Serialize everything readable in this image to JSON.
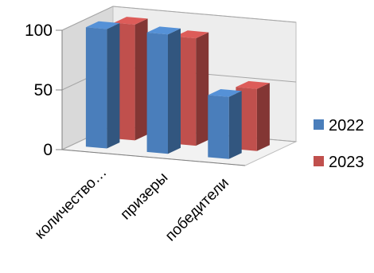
{
  "chart_data": {
    "type": "bar",
    "style": "3d-clustered-column",
    "categories": [
      "количество…",
      "призеры",
      "победители"
    ],
    "series": [
      {
        "name": "2022",
        "values": [
          100,
          100,
          52
        ],
        "color": "#4A7EBB"
      },
      {
        "name": "2023",
        "values": [
          97,
          90,
          52
        ],
        "color": "#C0504D"
      }
    ],
    "yticks": [
      "0",
      "50",
      "100"
    ],
    "ylim": [
      0,
      100
    ],
    "grid": true,
    "legend_position": "right"
  }
}
